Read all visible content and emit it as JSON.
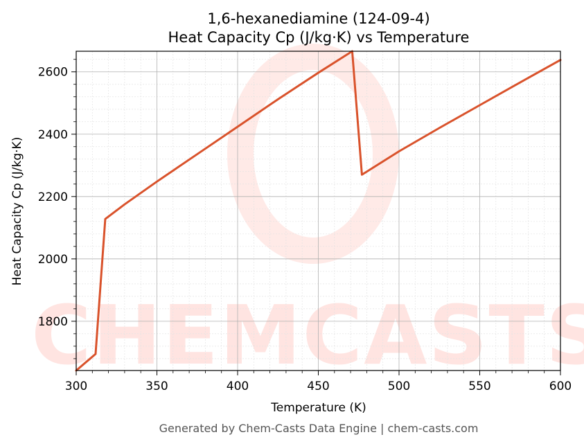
{
  "chart_data": {
    "type": "line",
    "title": "1,6-hexanediamine (124-09-4)",
    "subtitle": "Heat Capacity Cp (J/kg·K) vs Temperature",
    "xlabel": "Temperature (K)",
    "ylabel": "Heat Capacity Cp (J/kg·K)",
    "xlim": [
      300,
      600
    ],
    "ylim": [
      1642,
      2666
    ],
    "xticks": [
      300,
      350,
      400,
      450,
      500,
      550,
      600
    ],
    "yticks": [
      1800,
      2000,
      2200,
      2400,
      2600
    ],
    "grid": true,
    "series": [
      {
        "color": "#d9522b",
        "x": [
          300,
          312,
          318,
          330,
          350,
          375,
          400,
          425,
          450,
          471,
          477,
          500,
          525,
          550,
          575,
          600
        ],
        "y": [
          1642,
          1695,
          2128,
          2175,
          2248,
          2336,
          2424,
          2512,
          2597,
          2666,
          2270,
          2345,
          2420,
          2493,
          2566,
          2638
        ]
      }
    ]
  },
  "footer": "Generated by Chem-Casts Data Engine | chem-casts.com",
  "watermark": "CHEMCASTS",
  "colors": {
    "line": "#d9522b",
    "watermark": "#ff8a7a",
    "grid_major": "#b0b0b0",
    "grid_minor": "#e3e3e3"
  }
}
